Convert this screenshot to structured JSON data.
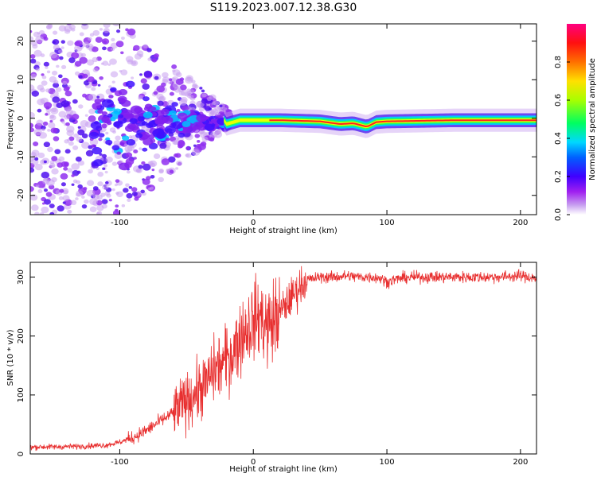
{
  "figure": {
    "title": "S119.2023.007.12.38.G30"
  },
  "chart_data": [
    {
      "type": "heatmap",
      "xlabel": "Height of straight line (km)",
      "ylabel": "Frequency (Hz)",
      "xlim": [
        -167,
        212
      ],
      "ylim": [
        -25,
        24.5
      ],
      "x_ticks": [
        -100,
        0,
        100,
        200
      ],
      "y_ticks": [
        -20,
        -10,
        0,
        10,
        20
      ],
      "colorbar": {
        "label": "Normalized spectral amplitude",
        "range": [
          0,
          1
        ],
        "ticks": [
          "0.0",
          "0.2",
          "0.4",
          "0.6",
          "0.8"
        ],
        "tick_values": [
          0,
          0.2,
          0.4,
          0.6,
          0.8
        ],
        "colormap": [
          "#ffffff",
          "#a020f0",
          "#3f00ff",
          "#0060ff",
          "#00d8ff",
          "#00ff60",
          "#a8ff00",
          "#ffe000",
          "#ff7000",
          "#ff1010",
          "#ff0080"
        ]
      },
      "ridge": {
        "description": "dominant spectral ridge",
        "points": [
          [
            -20,
            -1.5
          ],
          [
            -10,
            -0.5
          ],
          [
            0,
            -0.5
          ],
          [
            20,
            -0.5
          ],
          [
            50,
            -0.8
          ],
          [
            65,
            -1.5
          ],
          [
            75,
            -1.3
          ],
          [
            85,
            -2.2
          ],
          [
            92,
            -1.0
          ],
          [
            100,
            -0.8
          ],
          [
            150,
            -0.5
          ],
          [
            212,
            -0.5
          ]
        ]
      },
      "grid": false
    },
    {
      "type": "line",
      "xlabel": "Height of straight line (km)",
      "ylabel": "SNR (10 * v/v)",
      "xlim": [
        -167,
        212
      ],
      "ylim": [
        0,
        325
      ],
      "x_ticks": [
        -100,
        0,
        100,
        200
      ],
      "y_ticks": [
        0,
        100,
        200,
        300
      ],
      "series": [
        {
          "color": "#e83030",
          "x": [
            -167,
            -150,
            -130,
            -110,
            -100,
            -90,
            -80,
            -70,
            -60,
            -50,
            -45,
            -40,
            -35,
            -30,
            -25,
            -20,
            -15,
            -10,
            -5,
            0,
            5,
            10,
            15,
            20,
            25,
            30,
            35,
            40,
            50,
            60,
            70,
            80,
            90,
            95,
            100,
            110,
            120,
            140,
            160,
            180,
            200,
            212
          ],
          "y": [
            12,
            12,
            13,
            15,
            20,
            28,
            40,
            55,
            70,
            90,
            100,
            110,
            120,
            140,
            150,
            160,
            175,
            195,
            215,
            225,
            235,
            215,
            225,
            240,
            255,
            270,
            285,
            295,
            300,
            300,
            302,
            300,
            300,
            298,
            292,
            298,
            300,
            300,
            300,
            300,
            302,
            298
          ]
        }
      ],
      "grid": false
    }
  ]
}
